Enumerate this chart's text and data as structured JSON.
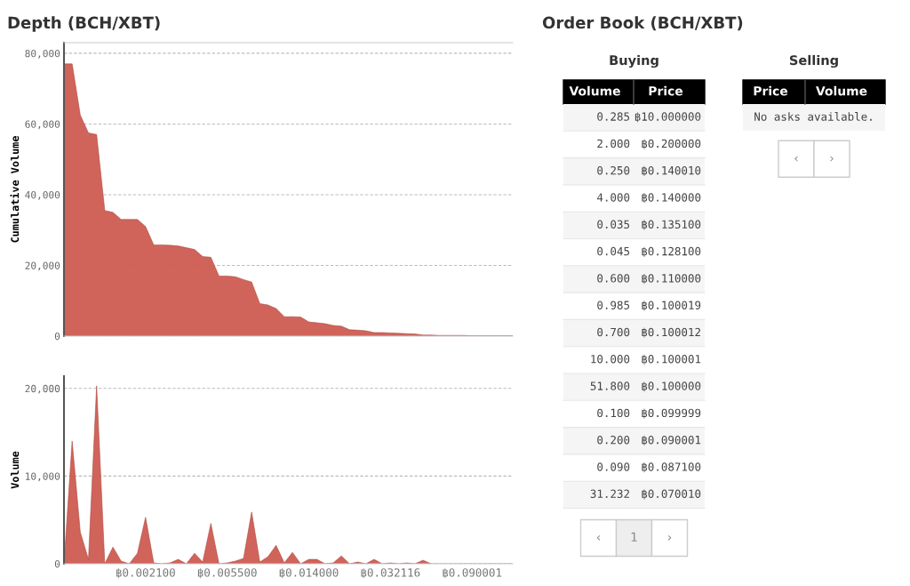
{
  "chart_data": [
    {
      "type": "area",
      "title": "Depth (BCH/XBT)",
      "ylabel": "Cumulative Volume",
      "color": "#cd5c52",
      "grid": "y",
      "tick_labels": "y",
      "categories": [
        null,
        null,
        null,
        null,
        null,
        null,
        null,
        null,
        null,
        null,
        null,
        null,
        null,
        null,
        null,
        null,
        null,
        null,
        null,
        null,
        null,
        null,
        null,
        null,
        null,
        null,
        null,
        null,
        null,
        null,
        null,
        null,
        null,
        null,
        null,
        null,
        null,
        null,
        null,
        null,
        null,
        null,
        null,
        null,
        null,
        null,
        null,
        null,
        null,
        null,
        null,
        null,
        null,
        null,
        null,
        null
      ],
      "values": [
        77000,
        77000,
        62500,
        57500,
        57000,
        35500,
        35000,
        33000,
        33000,
        33000,
        31000,
        25800,
        25800,
        25700,
        25500,
        25000,
        24500,
        22500,
        22300,
        17000,
        17000,
        16800,
        16000,
        15300,
        9200,
        8800,
        7800,
        5500,
        5500,
        5400,
        4000,
        3800,
        3500,
        3000,
        2800,
        1800,
        1700,
        1500,
        1000,
        1000,
        900,
        800,
        700,
        600,
        300,
        300,
        200,
        200,
        200,
        200,
        100,
        100,
        100,
        100,
        100,
        100
      ],
      "ylim": [
        0,
        83000
      ],
      "yticks": [
        {
          "value": 0,
          "label": "0"
        },
        {
          "value": 20000,
          "label": "20,000"
        },
        {
          "value": 40000,
          "label": "40,000"
        },
        {
          "value": 60000,
          "label": "60,000"
        },
        {
          "value": 80000,
          "label": "80,000"
        }
      ]
    },
    {
      "type": "area",
      "ylabel": "Volume",
      "color": "#cd5c52",
      "grid": "y",
      "categories": [
        null,
        null,
        null,
        null,
        null,
        null,
        null,
        null,
        null,
        null,
        "฿0.002100",
        null,
        null,
        null,
        null,
        null,
        null,
        null,
        null,
        null,
        "฿0.005500",
        null,
        null,
        null,
        null,
        null,
        null,
        null,
        null,
        null,
        "฿0.014000",
        null,
        null,
        null,
        null,
        null,
        null,
        null,
        null,
        null,
        "฿0.032116",
        null,
        null,
        null,
        null,
        null,
        null,
        null,
        null,
        null,
        "฿0.090001",
        null,
        null,
        null,
        null,
        null
      ],
      "values": [
        0,
        14000,
        3600,
        500,
        20300,
        0,
        1900,
        300,
        0,
        1200,
        5300,
        100,
        0,
        100,
        500,
        0,
        1200,
        200,
        4600,
        0,
        100,
        300,
        600,
        5900,
        200,
        800,
        2100,
        100,
        1300,
        0,
        500,
        500,
        0,
        100,
        900,
        0,
        200,
        0,
        500,
        0,
        100,
        0,
        100,
        0,
        400,
        0,
        0,
        0,
        0,
        0,
        0,
        0,
        0,
        0,
        0,
        0
      ],
      "ylim": [
        0,
        21400
      ],
      "yticks": [
        {
          "value": 0,
          "label": "0"
        },
        {
          "value": 10000,
          "label": "10,000"
        },
        {
          "value": 20000,
          "label": "20,000"
        }
      ]
    },
    {
      "type": "other",
      "title": "Order Book (BCH/XBT)",
      "categories": [
        "Volume",
        "Price"
      ],
      "annotations": [
        "Buying",
        "‹",
        "1",
        "›"
      ],
      "cell_labels": [
        [
          "0.285",
          "฿10.000000"
        ],
        [
          "2.000",
          "฿0.200000"
        ],
        [
          "0.250",
          "฿0.140010"
        ],
        [
          "4.000",
          "฿0.140000"
        ],
        [
          "0.035",
          "฿0.135100"
        ],
        [
          "0.045",
          "฿0.128100"
        ],
        [
          "0.600",
          "฿0.110000"
        ],
        [
          "0.985",
          "฿0.100019"
        ],
        [
          "0.700",
          "฿0.100012"
        ],
        [
          "10.000",
          "฿0.100001"
        ],
        [
          "51.800",
          "฿0.100000"
        ],
        [
          "0.100",
          "฿0.099999"
        ],
        [
          "0.200",
          "฿0.090001"
        ],
        [
          "0.090",
          "฿0.087100"
        ],
        [
          "31.232",
          "฿0.070010"
        ]
      ]
    },
    {
      "type": "other",
      "categories": [
        "Price",
        "Volume"
      ],
      "annotations": [
        "Selling",
        "No asks available.",
        "‹",
        "›"
      ]
    }
  ]
}
